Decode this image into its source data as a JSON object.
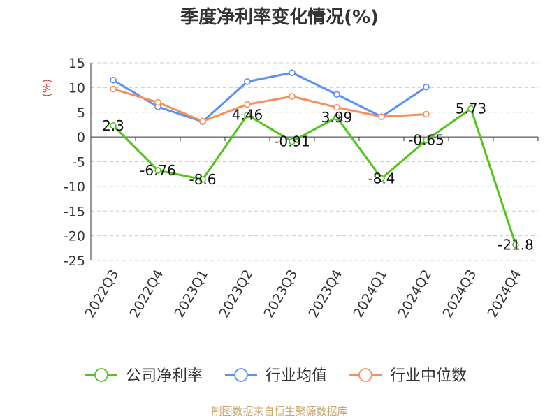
{
  "chart_data": {
    "type": "line",
    "title": "季度净利率变化情况(%)",
    "ylabel": "(%)",
    "xlabel": "",
    "categories": [
      "2022Q3",
      "2022Q4",
      "2023Q1",
      "2023Q2",
      "2023Q3",
      "2023Q4",
      "2024Q1",
      "2024Q2",
      "2024Q3",
      "2024Q4"
    ],
    "ylim": [
      -25,
      15
    ],
    "yticks": [
      15,
      10,
      5,
      0,
      -5,
      -10,
      -15,
      -20,
      -25
    ],
    "grid": true,
    "legend_position": "bottom",
    "series": [
      {
        "name": "公司净利率",
        "color": "#52c41a",
        "values": [
          2.3,
          -6.76,
          -8.6,
          4.46,
          -0.91,
          3.99,
          -8.4,
          -0.65,
          5.73,
          -21.8
        ],
        "labels": [
          "2.3",
          "-6.76",
          "-8.6",
          "4.46",
          "-0.91",
          "3.99",
          "-8.4",
          "-0.65",
          "5.73",
          "-21.8"
        ]
      },
      {
        "name": "行业均值",
        "color": "#5b8ff9",
        "values": [
          11.5,
          6.1,
          3.1,
          11.2,
          13.0,
          8.6,
          4.1,
          10.1,
          null,
          null
        ]
      },
      {
        "name": "行业中位数",
        "color": "#f6905a",
        "values": [
          9.7,
          7.0,
          3.2,
          6.6,
          8.2,
          6.0,
          4.1,
          4.6,
          null,
          null
        ]
      }
    ]
  },
  "source_text": "制图数据来自恒生聚源数据库",
  "colors": {
    "title": "#333333",
    "ylabel": "#e53935",
    "source": "#c8a56a",
    "grid": "#cccccc"
  }
}
